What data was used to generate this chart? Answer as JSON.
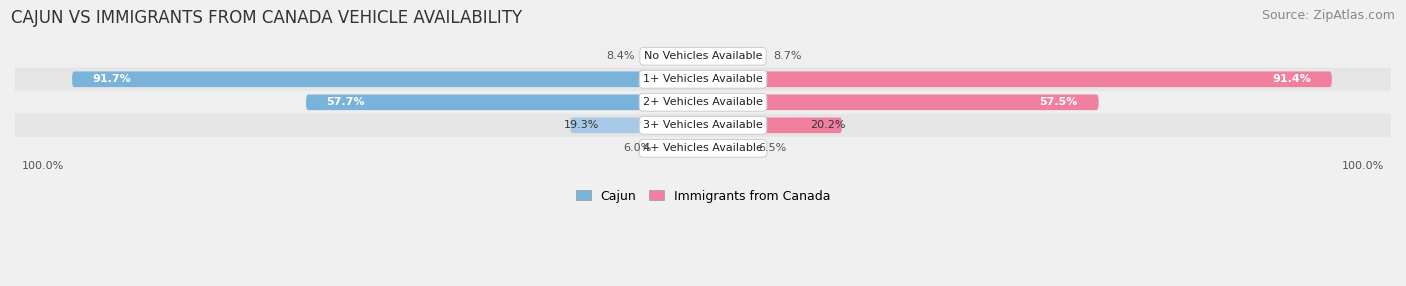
{
  "title": "CAJUN VS IMMIGRANTS FROM CANADA VEHICLE AVAILABILITY",
  "source": "Source: ZipAtlas.com",
  "categories": [
    "No Vehicles Available",
    "1+ Vehicles Available",
    "2+ Vehicles Available",
    "3+ Vehicles Available",
    "4+ Vehicles Available"
  ],
  "cajun_values": [
    8.4,
    91.7,
    57.7,
    19.3,
    6.0
  ],
  "canada_values": [
    8.7,
    91.4,
    57.5,
    20.2,
    6.5
  ],
  "cajun_color": "#7ab3d9",
  "canada_color": "#f07fa0",
  "cajun_color_light": "#a8c8e8",
  "canada_color_light": "#f4a8be",
  "row_bg_colors": [
    "#efefef",
    "#e5e5e5"
  ],
  "title_fontsize": 12,
  "source_fontsize": 9,
  "label_fontsize": 8,
  "value_fontsize": 8,
  "legend_fontsize": 9,
  "axis_max": 100.0,
  "figsize": [
    14.06,
    2.86
  ],
  "dpi": 100
}
